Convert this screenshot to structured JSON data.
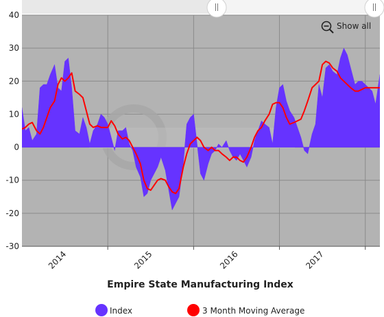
{
  "chart_data": {
    "type": "area",
    "title": "Empire State Manufacturing Index",
    "ylim": [
      -30,
      40
    ],
    "yticks": [
      -30,
      -20,
      -10,
      0,
      10,
      20,
      30,
      40
    ],
    "x_range": [
      2013.0,
      2017.17
    ],
    "xticks": [
      {
        "label": "2014",
        "value": 2014.0
      },
      {
        "label": "2015",
        "value": 2015.0
      },
      {
        "label": "2016",
        "value": 2016.0
      },
      {
        "label": "2017",
        "value": 2017.0
      }
    ],
    "grid": true,
    "legend_position": "bottom",
    "zoom_button_label": "Show all",
    "series": [
      {
        "name": "Index",
        "style": "area",
        "color": "#6633ff",
        "x": [
          2013.0,
          2013.04,
          2013.08,
          2013.12,
          2013.17,
          2013.21,
          2013.25,
          2013.29,
          2013.33,
          2013.38,
          2013.42,
          2013.46,
          2013.5,
          2013.54,
          2013.58,
          2013.62,
          2013.67,
          2013.71,
          2013.75,
          2013.79,
          2013.83,
          2013.88,
          2013.92,
          2013.96,
          2014.0,
          2014.04,
          2014.08,
          2014.12,
          2014.17,
          2014.21,
          2014.25,
          2014.29,
          2014.33,
          2014.38,
          2014.42,
          2014.46,
          2014.5,
          2014.54,
          2014.58,
          2014.62,
          2014.67,
          2014.71,
          2014.75,
          2014.79,
          2014.83,
          2014.88,
          2014.92,
          2014.96,
          2015.0,
          2015.04,
          2015.08,
          2015.12,
          2015.17,
          2015.21,
          2015.25,
          2015.29,
          2015.33,
          2015.38,
          2015.42,
          2015.46,
          2015.5,
          2015.54,
          2015.58,
          2015.62,
          2015.67,
          2015.71,
          2015.75,
          2015.79,
          2015.83,
          2015.88,
          2015.92,
          2015.96,
          2016.0,
          2016.04,
          2016.08,
          2016.12,
          2016.17,
          2016.21,
          2016.25,
          2016.29,
          2016.33,
          2016.38,
          2016.42,
          2016.46,
          2016.5,
          2016.54,
          2016.58,
          2016.62,
          2016.67,
          2016.71,
          2016.75,
          2016.79,
          2016.83,
          2016.88,
          2016.92,
          2016.96,
          2017.0,
          2017.04,
          2017.08,
          2017.12,
          2017.17
        ],
        "values": [
          12,
          5,
          6,
          2,
          4,
          18,
          19,
          19,
          22,
          25,
          18,
          17,
          26,
          27,
          18,
          5,
          4,
          9,
          6,
          1,
          5,
          7,
          10,
          9,
          7,
          3,
          -1,
          5,
          5,
          6,
          1,
          -1,
          -6,
          -9,
          -15,
          -14,
          -10,
          -8,
          -6,
          -3,
          -7,
          -13,
          -19,
          -17,
          -15,
          -5,
          7,
          9,
          10,
          1,
          -8,
          -10,
          -5,
          -2,
          -1,
          1,
          0,
          2,
          -1,
          -3,
          -4,
          -2,
          -4,
          -6,
          -3,
          2,
          5,
          8,
          7,
          6,
          1,
          12,
          18,
          19,
          14,
          11,
          9,
          6,
          3,
          -1,
          -2,
          4,
          7,
          19,
          15,
          24,
          25,
          23,
          22,
          27,
          30,
          28,
          24,
          19,
          20,
          20,
          19,
          18,
          17,
          13,
          22
        ]
      },
      {
        "name": "3 Month Moving Average",
        "style": "line",
        "color": "#ff0000",
        "x": [
          2013.0,
          2013.04,
          2013.08,
          2013.12,
          2013.17,
          2013.21,
          2013.25,
          2013.29,
          2013.33,
          2013.38,
          2013.42,
          2013.46,
          2013.5,
          2013.54,
          2013.58,
          2013.62,
          2013.67,
          2013.71,
          2013.75,
          2013.79,
          2013.83,
          2013.88,
          2013.92,
          2013.96,
          2014.0,
          2014.04,
          2014.08,
          2014.12,
          2014.17,
          2014.21,
          2014.25,
          2014.29,
          2014.33,
          2014.38,
          2014.42,
          2014.46,
          2014.5,
          2014.54,
          2014.58,
          2014.62,
          2014.67,
          2014.71,
          2014.75,
          2014.79,
          2014.83,
          2014.88,
          2014.92,
          2014.96,
          2015.0,
          2015.04,
          2015.08,
          2015.12,
          2015.17,
          2015.21,
          2015.25,
          2015.29,
          2015.33,
          2015.38,
          2015.42,
          2015.46,
          2015.5,
          2015.54,
          2015.58,
          2015.62,
          2015.67,
          2015.71,
          2015.75,
          2015.79,
          2015.83,
          2015.88,
          2015.92,
          2015.96,
          2016.0,
          2016.04,
          2016.08,
          2016.12,
          2016.17,
          2016.21,
          2016.25,
          2016.29,
          2016.33,
          2016.38,
          2016.42,
          2016.46,
          2016.5,
          2016.54,
          2016.58,
          2016.62,
          2016.67,
          2016.71,
          2016.75,
          2016.79,
          2016.83,
          2016.88,
          2016.92,
          2016.96,
          2017.0,
          2017.04,
          2017.08,
          2017.12,
          2017.17
        ],
        "values": [
          5.5,
          6,
          7,
          7.5,
          5,
          4,
          6,
          9,
          12,
          14,
          19,
          21,
          20,
          21,
          22.5,
          17,
          16,
          15,
          11,
          7,
          6,
          6.5,
          6,
          6,
          6,
          8,
          6.5,
          4,
          2.5,
          3,
          2,
          0,
          -2,
          -5,
          -10,
          -12.5,
          -13,
          -11.5,
          -10,
          -9.5,
          -10,
          -12,
          -13.5,
          -14,
          -12.5,
          -6,
          -2,
          1,
          2,
          3,
          2,
          0,
          -1,
          0,
          -1,
          -1,
          -2,
          -3,
          -4,
          -3,
          -3,
          -4,
          -4.5,
          -3,
          0,
          3,
          5,
          6,
          8,
          10,
          13,
          13.5,
          13.5,
          12,
          9,
          7,
          7.5,
          8,
          8.5,
          11,
          14,
          18,
          19,
          20,
          25,
          26,
          25.5,
          24,
          23,
          21,
          20,
          19,
          18,
          17,
          17,
          17.5,
          18,
          18,
          18,
          18,
          18
        ]
      }
    ]
  }
}
